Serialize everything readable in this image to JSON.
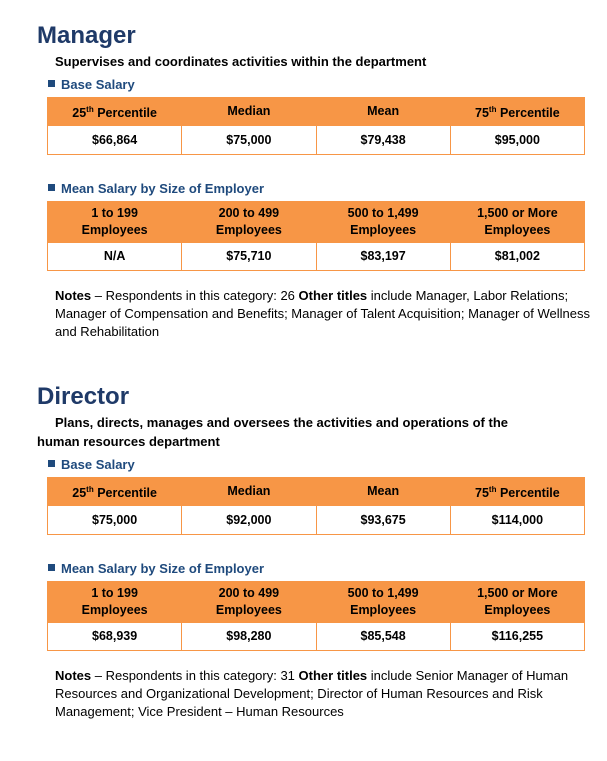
{
  "sections": [
    {
      "title": "Manager",
      "description": "Supervises and coordinates activities within the department",
      "base_salary": {
        "heading": "Base Salary",
        "headers": [
          [
            "25",
            "th",
            " Percentile"
          ],
          [
            "Median"
          ],
          [
            "Mean"
          ],
          [
            "75",
            "th",
            " Percentile"
          ]
        ],
        "values": [
          "$66,864",
          "$75,000",
          "$79,438",
          "$95,000"
        ]
      },
      "by_employer": {
        "heading": "Mean Salary by Size of Employer",
        "headers": [
          [
            "1 to 199",
            "Employees"
          ],
          [
            "200 to 499",
            "Employees"
          ],
          [
            "500 to 1,499",
            "Employees"
          ],
          [
            "1,500 or More",
            "Employees"
          ]
        ],
        "values": [
          "N/A",
          "$75,710",
          "$83,197",
          "$81,002"
        ]
      },
      "notes": {
        "label": "Notes",
        "text": " – Respondents in this category: 26 ",
        "other_label": "Other titles",
        "other_text": " include Manager, Labor Relations; Manager of Compensation and Benefits; Manager of Talent Acquisition; Manager of Wellness and Rehabilitation"
      }
    },
    {
      "title": "Director",
      "description": "Plans, directs, manages and oversees the activities and operations of the human resources department",
      "base_salary": {
        "heading": "Base Salary",
        "headers": [
          [
            "25",
            "th",
            " Percentile"
          ],
          [
            "Median"
          ],
          [
            "Mean"
          ],
          [
            "75",
            "th",
            " Percentile"
          ]
        ],
        "values": [
          "$75,000",
          "$92,000",
          "$93,675",
          "$114,000"
        ]
      },
      "by_employer": {
        "heading": "Mean Salary by Size of Employer",
        "headers": [
          [
            "1 to 199",
            "Employees"
          ],
          [
            "200 to 499",
            "Employees"
          ],
          [
            "500 to 1,499",
            "Employees"
          ],
          [
            "1,500 or More",
            "Employees"
          ]
        ],
        "values": [
          "$68,939",
          "$98,280",
          "$85,548",
          "$116,255"
        ]
      },
      "notes": {
        "label": "Notes",
        "text": " – Respondents in this category: 31 ",
        "other_label": "Other titles",
        "other_text": " include Senior Manager of Human Resources and Organizational Development; Director of Human Resources and Risk Management; Vice President – Human Resources"
      }
    }
  ]
}
